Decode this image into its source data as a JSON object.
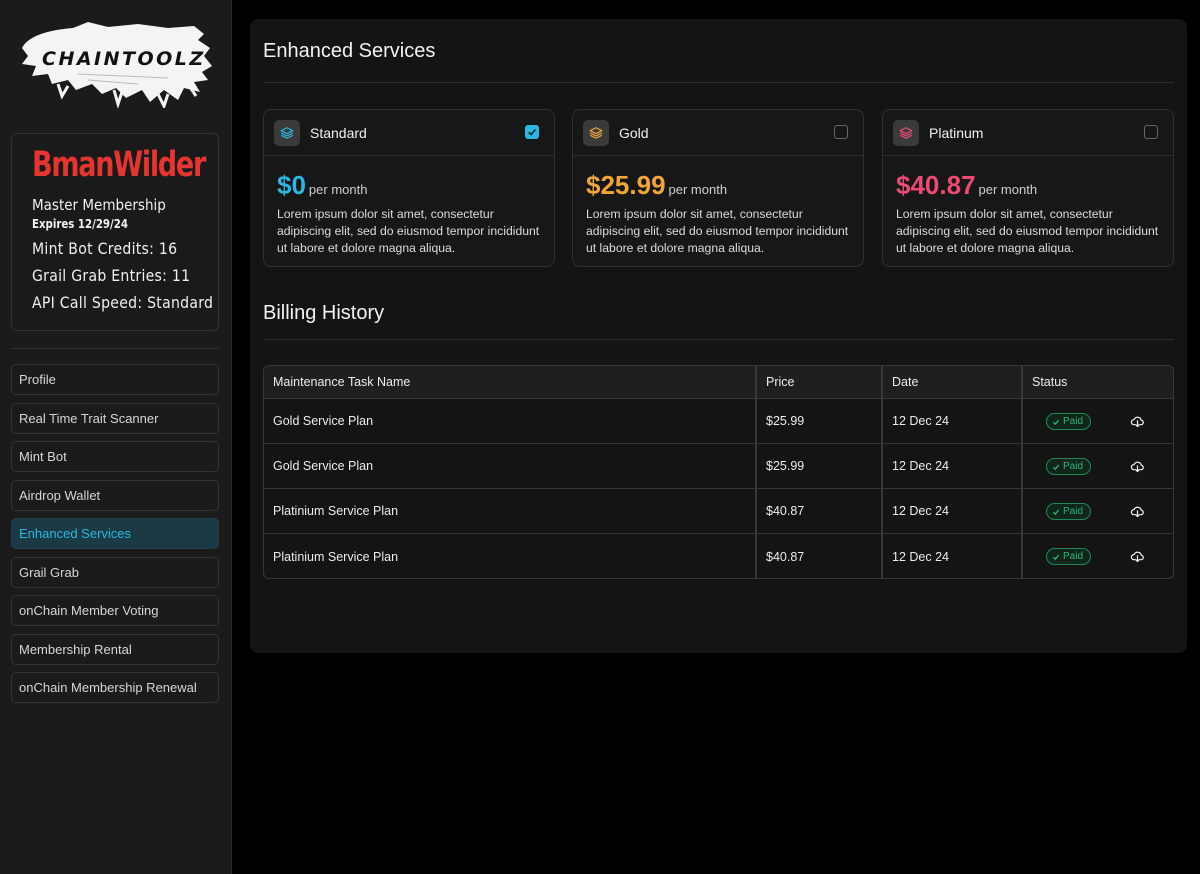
{
  "sidebar": {
    "logo_text": "CHAINTOOLZ",
    "profile": {
      "username": "BmanWilder",
      "membership": "Master Membership",
      "expires": "Expires 12/29/24",
      "stats": [
        "Mint Bot Credits: 16",
        "Grail Grab Entries: 11",
        "API Call Speed: Standard"
      ]
    },
    "nav": [
      {
        "label": "Profile",
        "active": false
      },
      {
        "label": "Real Time Trait Scanner",
        "active": false
      },
      {
        "label": "Mint Bot",
        "active": false
      },
      {
        "label": "Airdrop Wallet",
        "active": false
      },
      {
        "label": "Enhanced Services",
        "active": true
      },
      {
        "label": "Grail Grab",
        "active": false
      },
      {
        "label": "onChain Member Voting",
        "active": false
      },
      {
        "label": "Membership Rental",
        "active": false
      },
      {
        "label": "onChain Membership Renewal",
        "active": false
      }
    ]
  },
  "main": {
    "title": "Enhanced Services",
    "plans": [
      {
        "name": "Standard",
        "price": "$0",
        "per": "per month",
        "checked": true,
        "color": "#2ab8e0",
        "description": "Lorem ipsum dolor sit amet, consectetur adipiscing elit, sed do eiusmod tempor incididunt ut labore et dolore magna aliqua."
      },
      {
        "name": "Gold",
        "price": "$25.99",
        "per": "per month",
        "checked": false,
        "color": "#f0a53a",
        "description": "Lorem ipsum dolor sit amet, consectetur adipiscing elit, sed do eiusmod tempor incididunt ut labore et dolore magna aliqua."
      },
      {
        "name": "Platinum",
        "price": "$40.87",
        "per": "per month",
        "checked": false,
        "color": "#ec4a72",
        "description": "Lorem ipsum dolor sit amet, consectetur adipiscing elit, sed do eiusmod tempor incididunt ut labore et dolore magna aliqua."
      }
    ],
    "billing": {
      "title": "Billing History",
      "columns": [
        "Maintenance Task Name",
        "Price",
        "Date",
        "Status"
      ],
      "rows": [
        {
          "name": "Gold Service Plan",
          "price": "$25.99",
          "date": "12 Dec 24",
          "status": "Paid"
        },
        {
          "name": "Gold Service Plan",
          "price": "$25.99",
          "date": "12 Dec 24",
          "status": "Paid"
        },
        {
          "name": "Platinium Service Plan",
          "price": "$40.87",
          "date": "12 Dec 24",
          "status": "Paid"
        },
        {
          "name": "Platinium Service Plan",
          "price": "$40.87",
          "date": "12 Dec 24",
          "status": "Paid"
        }
      ]
    }
  },
  "icons": {
    "plan": "layers-icon",
    "status": "check-icon",
    "download": "cloud-download-icon"
  },
  "colors": {
    "accent": "#2ab8e0",
    "username": "#e53530",
    "paid": "#2bb673"
  }
}
